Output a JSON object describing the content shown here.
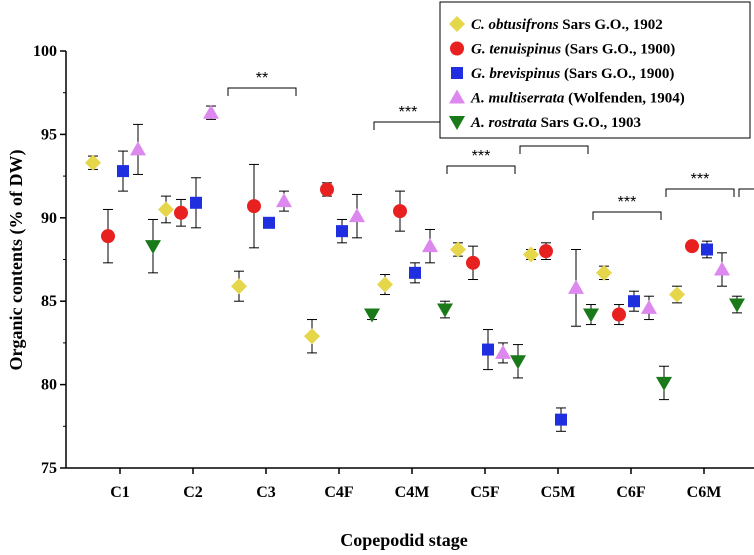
{
  "chart_data": {
    "type": "scatter",
    "xlabel": "Copepodid stage",
    "ylabel": "Organic contents (% of DW)",
    "categories": [
      "C1",
      "C2",
      "C3",
      "C4F",
      "C4M",
      "C5F",
      "C5M",
      "C6F",
      "C6M"
    ],
    "ylim": [
      75,
      100
    ],
    "yticks": [
      75,
      80,
      85,
      90,
      95,
      100
    ],
    "grid": false,
    "legend_position": "top-right",
    "series": [
      {
        "name_italic": "C. obtusifrons",
        "name_rest": " Sars G.O., 1902",
        "marker": "diamond",
        "color": "#e6d64a",
        "values": [
          93.3,
          90.5,
          85.9,
          82.9,
          86.0,
          88.1,
          87.8,
          86.7,
          85.4
        ],
        "errors": [
          0.4,
          0.8,
          0.9,
          1.0,
          0.6,
          0.4,
          0.3,
          0.4,
          0.5
        ]
      },
      {
        "name_italic": "G. tenuispinus",
        "name_rest": " (Sars G.O., 1900)",
        "marker": "circle",
        "color": "#e8201f",
        "values": [
          88.9,
          90.3,
          90.7,
          91.7,
          90.4,
          87.3,
          88.0,
          84.2,
          88.3
        ],
        "errors": [
          1.6,
          0.8,
          2.5,
          0.4,
          1.2,
          1.0,
          0.5,
          0.6,
          0.1
        ]
      },
      {
        "name_italic": "G. brevispinus",
        "name_rest": " (Sars G.O., 1900)",
        "marker": "square",
        "color": "#1f2fe0",
        "values": [
          92.8,
          90.9,
          89.7,
          89.2,
          86.7,
          82.1,
          77.9,
          85.0,
          88.1
        ],
        "errors": [
          1.2,
          1.5,
          0.0,
          0.7,
          0.6,
          1.2,
          0.7,
          0.6,
          0.5
        ]
      },
      {
        "name_italic": "A. multiserrata",
        "name_rest": " (Wolfenden, 1904)",
        "marker": "triangle-up",
        "color": "#dd88ee",
        "values": [
          94.1,
          96.3,
          91.0,
          90.1,
          88.3,
          81.9,
          85.8,
          84.6,
          86.9
        ],
        "errors": [
          1.5,
          0.4,
          0.6,
          1.3,
          1.0,
          0.6,
          2.3,
          0.7,
          1.0
        ]
      },
      {
        "name_italic": "A. rostrata",
        "name_rest": " Sars G.O., 1903",
        "marker": "triangle-down",
        "color": "#1a7a1a",
        "values": [
          88.3,
          null,
          null,
          84.2,
          84.5,
          81.4,
          84.2,
          80.1,
          84.8
        ],
        "errors": [
          1.6,
          null,
          null,
          0.3,
          0.5,
          1.0,
          0.6,
          1.0,
          0.5
        ]
      }
    ],
    "significance": [
      {
        "label": "**",
        "from": "C2",
        "to": "C3"
      },
      {
        "label": "***",
        "from": "C4F",
        "to": "C4M"
      },
      {
        "label": "***",
        "from": "C4M",
        "to": "C5F"
      },
      {
        "label": "**",
        "from": "C5F",
        "to": "C5M"
      },
      {
        "label": "***",
        "from": "C5M",
        "to": "C6F"
      },
      {
        "label": "***",
        "from": "C6F",
        "to": "C6M"
      },
      {
        "label": "*",
        "from": "C6M",
        "to": "end"
      }
    ]
  }
}
